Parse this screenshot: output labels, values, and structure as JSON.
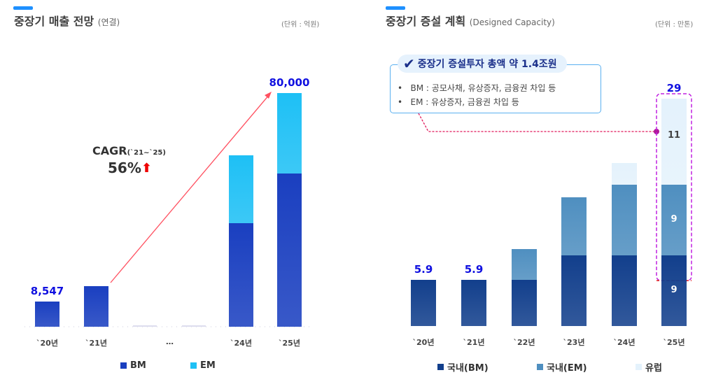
{
  "chart_data": [
    {
      "type": "bar",
      "stacked": true,
      "title": "중장기 매출 전망",
      "subtitle": "(연결)",
      "unit": "(단위 : 억원)",
      "categories": [
        "`20년",
        "`21년",
        "…",
        "`24년",
        "`25년"
      ],
      "series": [
        {
          "name": "BM",
          "color": "#1a3fc0",
          "values": [
            8547,
            13900,
            null,
            35400,
            52500
          ]
        },
        {
          "name": "EM",
          "color": "#1ec0f5",
          "values": [
            0,
            0,
            null,
            23300,
            27500
          ]
        }
      ],
      "data_labels": [
        "8,547",
        "",
        "",
        "",
        "80,000"
      ],
      "annotation": {
        "cagr_label": "CAGR",
        "cagr_period": "(`21~`25)",
        "cagr_value": "56%",
        "arrow_color": "#ff3030"
      },
      "ylim": [
        0,
        80000
      ],
      "grid": false,
      "legend": "bottom"
    },
    {
      "type": "bar",
      "stacked": true,
      "title": "중장기 증설 계획",
      "subtitle": "(Designed Capacity)",
      "unit": "(단위 : 만톤)",
      "categories": [
        "`20년",
        "`21년",
        "`22년",
        "`23년",
        "`24년",
        "`25년"
      ],
      "series": [
        {
          "name": "국내(BM)",
          "color": "#123f8c",
          "values": [
            5.9,
            5.9,
            5.9,
            9,
            9,
            9
          ]
        },
        {
          "name": "국내(EM)",
          "color": "#4f8fc0",
          "values": [
            0,
            0,
            3.9,
            7.4,
            9,
            9
          ]
        },
        {
          "name": "유럽",
          "color": "#e4f2fc",
          "values": [
            0,
            0,
            0,
            0,
            2.8,
            11
          ]
        }
      ],
      "data_labels": [
        "5.9",
        "5.9",
        "",
        "",
        "",
        "29"
      ],
      "segment_labels_25": [
        "9",
        "9",
        "11"
      ],
      "ylim": [
        0,
        30
      ],
      "grid": false,
      "legend": "bottom"
    }
  ],
  "callout": {
    "heading": "중장기 증설투자 총액 약 1.4조원",
    "bullets": [
      "BM : 공모사채, 유상증자, 금융권 차입 등",
      "EM : 유상증자, 금융권 차입 등"
    ],
    "icon": "check-icon",
    "line_color": "#e0185a"
  }
}
